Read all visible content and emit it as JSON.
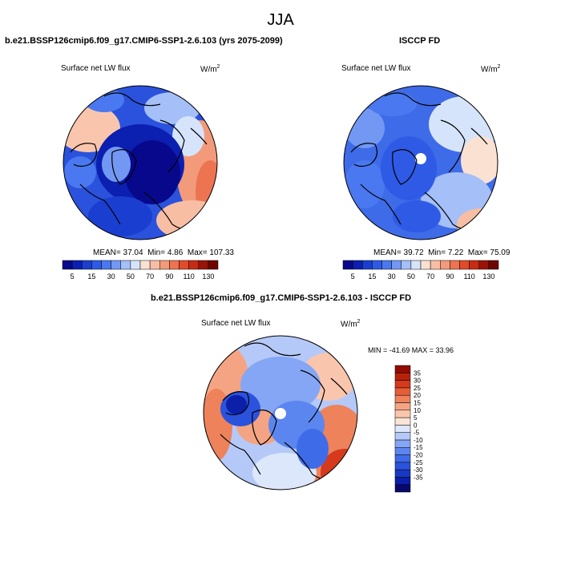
{
  "season": "JJA",
  "panels": [
    {
      "title": "b.e21.BSSP126cmip6.f09_g17.CMIP6-SSP1-2.6.103 (yrs 2075-2099)",
      "field": "Surface net LW flux",
      "units": "W/m",
      "units_sup": "2",
      "stats": {
        "mean_label": "MEAN=",
        "mean": "37.04",
        "min_label": "Min=",
        "min": "4.86",
        "max_label": "Max=",
        "max": "107.33"
      }
    },
    {
      "title": "ISCCP FD",
      "field": "Surface net LW flux",
      "units": "W/m",
      "units_sup": "2",
      "stats": {
        "mean_label": "MEAN=",
        "mean": "39.72",
        "min_label": "Min=",
        "min": "7.22",
        "max_label": "Max=",
        "max": "75.09"
      }
    },
    {
      "title": "b.e21.BSSP126cmip6.f09_g17.CMIP6-SSP1-2.6.103 - ISCCP FD",
      "field": "Surface net LW flux",
      "units": "W/m",
      "units_sup": "2",
      "stats": {
        "text": "MIN = -41.69 MAX =  33.96"
      }
    }
  ],
  "colorbar_abs": {
    "colors": [
      "#08088c",
      "#0b1fb0",
      "#1a3fd0",
      "#2e5ae6",
      "#4a78f0",
      "#7298f4",
      "#a5bff8",
      "#d6e4fb",
      "#fbe1d2",
      "#f8bea4",
      "#f39a7b",
      "#ec7450",
      "#e14b2b",
      "#c72b13",
      "#9a1306",
      "#6e0600"
    ],
    "labels": [
      "5",
      "15",
      "30",
      "50",
      "70",
      "90",
      "110",
      "130"
    ]
  },
  "colorbar_diff": {
    "colors": [
      "#08086c",
      "#0b1fa8",
      "#1838c6",
      "#2a52dc",
      "#3e6be8",
      "#5c86ef",
      "#85a6f4",
      "#b5c9f8",
      "#dde7fc",
      "#fbe4d6",
      "#f9c6ad",
      "#f4a482",
      "#ee825b",
      "#e55e38",
      "#d43a1b",
      "#b8220b",
      "#920c02"
    ],
    "labels": [
      "35",
      "30",
      "25",
      "20",
      "15",
      "10",
      "5",
      "0",
      "-5",
      "-10",
      "-15",
      "-20",
      "-25",
      "-30",
      "-35"
    ]
  }
}
